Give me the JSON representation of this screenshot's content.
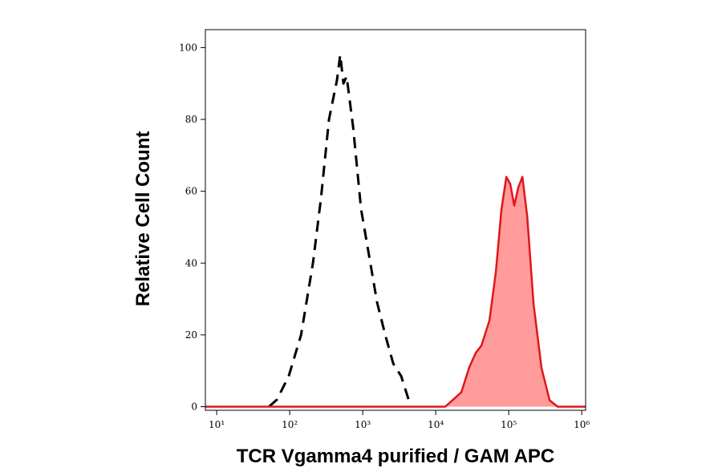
{
  "chart_data": {
    "type": "histogram-overlay",
    "xlabel": "TCR Vgamma4 purified / GAM APC",
    "ylabel": "Relative Cell Count",
    "xscale": "log",
    "xlim": [
      7,
      1130000
    ],
    "xticks": [
      {
        "value": 10,
        "label": "10¹"
      },
      {
        "value": 100,
        "label": "10²"
      },
      {
        "value": 1000,
        "label": "10³"
      },
      {
        "value": 10000,
        "label": "10⁴"
      },
      {
        "value": 100000,
        "label": "10⁵"
      },
      {
        "value": 1000000,
        "label": "10⁶"
      }
    ],
    "ylim": [
      -1,
      105
    ],
    "yticks": [
      0,
      20,
      40,
      60,
      80,
      100
    ],
    "series": [
      {
        "color": "#000000",
        "dashed": true,
        "filled": false,
        "x": [
          52,
          67,
          97,
          143,
          208,
          268,
          345,
          445,
          492,
          545,
          603,
          738,
          950,
          1224,
          1577,
          2032,
          2618,
          3370,
          4560
        ],
        "values": [
          0,
          2,
          8.5,
          20,
          40,
          58,
          80,
          91,
          98,
          90,
          92,
          78,
          55,
          42,
          29,
          20,
          12,
          8.5,
          0
        ]
      },
      {
        "color": "#e0161b",
        "dashed": false,
        "filled": true,
        "fill": "#ff9b9b",
        "x": [
          7,
          13500,
          17400,
          22400,
          28800,
          35400,
          42300,
          54400,
          66700,
          79500,
          92700,
          105000,
          119000,
          135000,
          154000,
          179000,
          219000,
          282000,
          363000,
          468000,
          1130000
        ],
        "values": [
          0,
          0,
          2,
          4,
          11,
          15,
          17,
          24,
          37.5,
          55,
          64,
          62,
          56,
          61,
          64,
          53,
          28.6,
          10.7,
          1.8,
          0,
          0
        ]
      }
    ]
  }
}
